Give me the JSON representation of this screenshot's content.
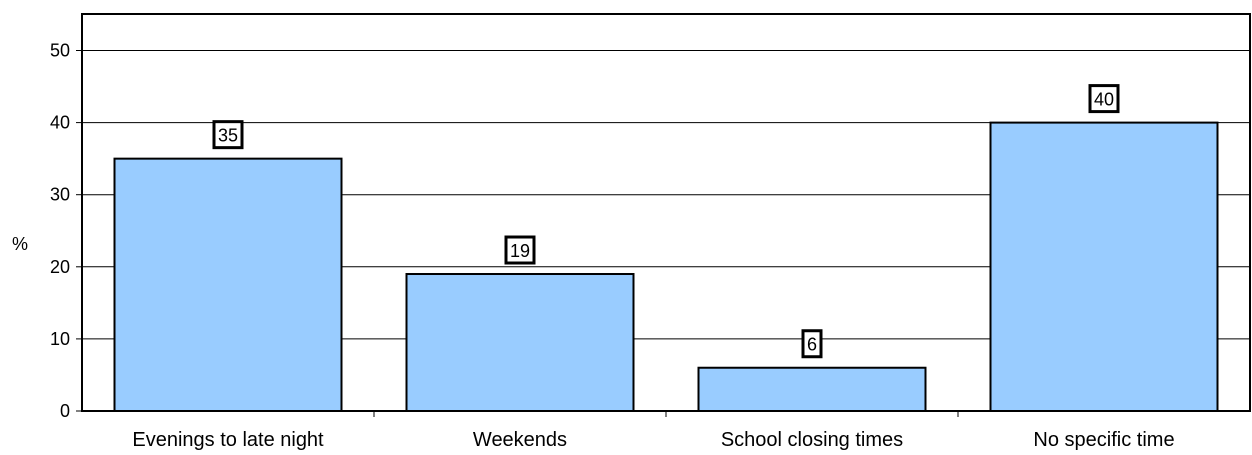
{
  "chart_data": {
    "type": "bar",
    "categories": [
      "Evenings to late night",
      "Weekends",
      "School closing times",
      "No specific time"
    ],
    "values": [
      35,
      19,
      6,
      40
    ],
    "data_labels": [
      "35",
      "19",
      "6",
      "40"
    ],
    "title": "",
    "xlabel": "",
    "ylabel": "%",
    "ylim": [
      0,
      55
    ],
    "yticks": [
      0,
      10,
      20,
      30,
      40,
      50
    ],
    "ytick_labels": [
      "0",
      "10",
      "20",
      "30",
      "40",
      "50"
    ],
    "grid": true,
    "legend": "none",
    "colors": {
      "bar_fill": "#99ccff",
      "bar_stroke": "#000000",
      "grid": "#000000",
      "frame": "#000000"
    }
  }
}
